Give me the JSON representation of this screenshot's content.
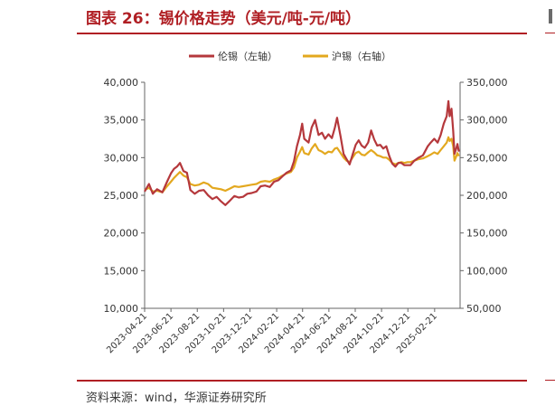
{
  "title": "图表 26：锡价格走势（美元/吨-元/吨）",
  "source": "资料来源：wind，华源证券研究所",
  "chart_data": {
    "type": "line",
    "legend_position": "top",
    "grid": false,
    "x_tick_labels": [
      "2023-04-21",
      "2023-06-21",
      "2023-08-21",
      "2023-10-21",
      "2023-12-21",
      "2024-02-21",
      "2024-04-21",
      "2024-06-21",
      "2024-08-21",
      "2024-10-21",
      "2024-12-21",
      "2025-02-21"
    ],
    "x_range": [
      "2023-04-21",
      "2025-04-21"
    ],
    "y_left": {
      "range": [
        10000,
        40000
      ],
      "ticks": [
        "10,000",
        "15,000",
        "20,000",
        "25,000",
        "30,000",
        "35,000",
        "40,000"
      ]
    },
    "y_right": {
      "range": [
        50000,
        350000
      ],
      "ticks": [
        "50,000",
        "100,000",
        "150,000",
        "200,000",
        "250,000",
        "300,000",
        "350,000"
      ]
    },
    "series": [
      {
        "name": "伦锡（左轴）",
        "axis": "left",
        "color": "#b5383c",
        "points": [
          [
            "2023-04-21",
            25500
          ],
          [
            "2023-05-01",
            26500
          ],
          [
            "2023-05-10",
            25200
          ],
          [
            "2023-05-20",
            25800
          ],
          [
            "2023-06-01",
            25400
          ],
          [
            "2023-06-12",
            26800
          ],
          [
            "2023-06-21",
            27900
          ],
          [
            "2023-06-28",
            28500
          ],
          [
            "2023-07-05",
            28800
          ],
          [
            "2023-07-12",
            29300
          ],
          [
            "2023-07-20",
            28200
          ],
          [
            "2023-07-28",
            28000
          ],
          [
            "2023-08-05",
            25700
          ],
          [
            "2023-08-15",
            25200
          ],
          [
            "2023-08-25",
            25600
          ],
          [
            "2023-09-05",
            25700
          ],
          [
            "2023-09-15",
            25000
          ],
          [
            "2023-09-25",
            24500
          ],
          [
            "2023-10-05",
            24800
          ],
          [
            "2023-10-15",
            24200
          ],
          [
            "2023-10-25",
            23700
          ],
          [
            "2023-11-05",
            24300
          ],
          [
            "2023-11-15",
            24900
          ],
          [
            "2023-11-25",
            24700
          ],
          [
            "2023-12-05",
            24800
          ],
          [
            "2023-12-15",
            25200
          ],
          [
            "2023-12-25",
            25300
          ],
          [
            "2024-01-05",
            25500
          ],
          [
            "2024-01-15",
            26200
          ],
          [
            "2024-01-25",
            26300
          ],
          [
            "2024-02-05",
            26100
          ],
          [
            "2024-02-15",
            26800
          ],
          [
            "2024-02-25",
            27000
          ],
          [
            "2024-03-05",
            27500
          ],
          [
            "2024-03-15",
            28000
          ],
          [
            "2024-03-25",
            28300
          ],
          [
            "2024-04-01",
            29500
          ],
          [
            "2024-04-08",
            31500
          ],
          [
            "2024-04-15",
            33000
          ],
          [
            "2024-04-20",
            34500
          ],
          [
            "2024-04-25",
            32500
          ],
          [
            "2024-05-05",
            32000
          ],
          [
            "2024-05-12",
            34000
          ],
          [
            "2024-05-20",
            35000
          ],
          [
            "2024-05-28",
            33000
          ],
          [
            "2024-06-05",
            33300
          ],
          [
            "2024-06-12",
            32500
          ],
          [
            "2024-06-20",
            33100
          ],
          [
            "2024-06-28",
            32600
          ],
          [
            "2024-07-05",
            34000
          ],
          [
            "2024-07-10",
            35300
          ],
          [
            "2024-07-18",
            32800
          ],
          [
            "2024-07-25",
            30500
          ],
          [
            "2024-08-01",
            29800
          ],
          [
            "2024-08-08",
            29100
          ],
          [
            "2024-08-15",
            30400
          ],
          [
            "2024-08-22",
            31700
          ],
          [
            "2024-08-29",
            32300
          ],
          [
            "2024-09-05",
            31600
          ],
          [
            "2024-09-12",
            31300
          ],
          [
            "2024-09-20",
            32000
          ],
          [
            "2024-09-27",
            33600
          ],
          [
            "2024-10-04",
            32400
          ],
          [
            "2024-10-11",
            31600
          ],
          [
            "2024-10-18",
            31700
          ],
          [
            "2024-10-25",
            31200
          ],
          [
            "2024-11-01",
            31500
          ],
          [
            "2024-11-08",
            30200
          ],
          [
            "2024-11-15",
            29200
          ],
          [
            "2024-11-22",
            28800
          ],
          [
            "2024-11-29",
            29300
          ],
          [
            "2024-12-06",
            29300
          ],
          [
            "2024-12-13",
            29000
          ],
          [
            "2024-12-20",
            29000
          ],
          [
            "2024-12-27",
            29000
          ],
          [
            "2025-01-05",
            29600
          ],
          [
            "2025-01-15",
            30000
          ],
          [
            "2025-01-25",
            30300
          ],
          [
            "2025-02-05",
            31500
          ],
          [
            "2025-02-12",
            32000
          ],
          [
            "2025-02-20",
            32500
          ],
          [
            "2025-02-28",
            32000
          ],
          [
            "2025-03-07",
            33000
          ],
          [
            "2025-03-14",
            34500
          ],
          [
            "2025-03-21",
            35500
          ],
          [
            "2025-03-25",
            37500
          ],
          [
            "2025-03-28",
            35500
          ],
          [
            "2025-04-01",
            36500
          ],
          [
            "2025-04-05",
            33500
          ],
          [
            "2025-04-08",
            30500
          ],
          [
            "2025-04-11",
            31000
          ],
          [
            "2025-04-15",
            31800
          ],
          [
            "2025-04-18",
            30800
          ]
        ]
      },
      {
        "name": "沪锡（右轴）",
        "axis": "right",
        "color": "#e3a81f",
        "points": [
          [
            "2023-04-21",
            207000
          ],
          [
            "2023-05-01",
            210000
          ],
          [
            "2023-05-10",
            205000
          ],
          [
            "2023-05-20",
            206000
          ],
          [
            "2023-06-01",
            204000
          ],
          [
            "2023-06-12",
            212000
          ],
          [
            "2023-06-21",
            218000
          ],
          [
            "2023-06-28",
            223000
          ],
          [
            "2023-07-05",
            227000
          ],
          [
            "2023-07-12",
            231000
          ],
          [
            "2023-07-20",
            226000
          ],
          [
            "2023-07-28",
            224000
          ],
          [
            "2023-08-05",
            215000
          ],
          [
            "2023-08-15",
            213000
          ],
          [
            "2023-08-25",
            214000
          ],
          [
            "2023-09-05",
            217000
          ],
          [
            "2023-09-15",
            215000
          ],
          [
            "2023-09-25",
            210000
          ],
          [
            "2023-10-05",
            209000
          ],
          [
            "2023-10-15",
            208000
          ],
          [
            "2023-10-25",
            206000
          ],
          [
            "2023-11-05",
            209000
          ],
          [
            "2023-11-15",
            212000
          ],
          [
            "2023-11-25",
            211000
          ],
          [
            "2023-12-05",
            212000
          ],
          [
            "2023-12-15",
            213000
          ],
          [
            "2023-12-25",
            214000
          ],
          [
            "2024-01-05",
            215000
          ],
          [
            "2024-01-15",
            218000
          ],
          [
            "2024-01-25",
            219000
          ],
          [
            "2024-02-05",
            218000
          ],
          [
            "2024-02-15",
            221000
          ],
          [
            "2024-02-25",
            223000
          ],
          [
            "2024-03-05",
            226000
          ],
          [
            "2024-03-15",
            229000
          ],
          [
            "2024-03-25",
            231000
          ],
          [
            "2024-04-01",
            237000
          ],
          [
            "2024-04-08",
            250000
          ],
          [
            "2024-04-15",
            258000
          ],
          [
            "2024-04-20",
            264000
          ],
          [
            "2024-04-25",
            256000
          ],
          [
            "2024-05-05",
            254000
          ],
          [
            "2024-05-12",
            262000
          ],
          [
            "2024-05-20",
            268000
          ],
          [
            "2024-05-28",
            260000
          ],
          [
            "2024-06-05",
            258000
          ],
          [
            "2024-06-12",
            255000
          ],
          [
            "2024-06-20",
            258000
          ],
          [
            "2024-06-28",
            257000
          ],
          [
            "2024-07-05",
            262000
          ],
          [
            "2024-07-10",
            263000
          ],
          [
            "2024-07-18",
            256000
          ],
          [
            "2024-07-25",
            250000
          ],
          [
            "2024-08-01",
            246000
          ],
          [
            "2024-08-08",
            244000
          ],
          [
            "2024-08-15",
            250000
          ],
          [
            "2024-08-22",
            256000
          ],
          [
            "2024-08-29",
            258000
          ],
          [
            "2024-09-05",
            254000
          ],
          [
            "2024-09-12",
            253000
          ],
          [
            "2024-09-20",
            257000
          ],
          [
            "2024-09-27",
            260000
          ],
          [
            "2024-10-04",
            257000
          ],
          [
            "2024-10-11",
            253000
          ],
          [
            "2024-10-18",
            252000
          ],
          [
            "2024-10-25",
            250000
          ],
          [
            "2024-11-01",
            250000
          ],
          [
            "2024-11-08",
            247000
          ],
          [
            "2024-11-15",
            243000
          ],
          [
            "2024-11-22",
            241000
          ],
          [
            "2024-11-29",
            243000
          ],
          [
            "2024-12-06",
            244000
          ],
          [
            "2024-12-13",
            243000
          ],
          [
            "2024-12-20",
            244000
          ],
          [
            "2024-12-27",
            244000
          ],
          [
            "2025-01-05",
            246000
          ],
          [
            "2025-01-15",
            248000
          ],
          [
            "2025-01-25",
            249000
          ],
          [
            "2025-02-05",
            252000
          ],
          [
            "2025-02-12",
            254000
          ],
          [
            "2025-02-20",
            257000
          ],
          [
            "2025-02-28",
            255000
          ],
          [
            "2025-03-07",
            260000
          ],
          [
            "2025-03-14",
            265000
          ],
          [
            "2025-03-21",
            270000
          ],
          [
            "2025-03-25",
            277000
          ],
          [
            "2025-03-28",
            272000
          ],
          [
            "2025-04-01",
            275000
          ],
          [
            "2025-04-05",
            265000
          ],
          [
            "2025-04-08",
            246000
          ],
          [
            "2025-04-11",
            250000
          ],
          [
            "2025-04-15",
            256000
          ],
          [
            "2025-04-18",
            252000
          ]
        ]
      }
    ]
  }
}
